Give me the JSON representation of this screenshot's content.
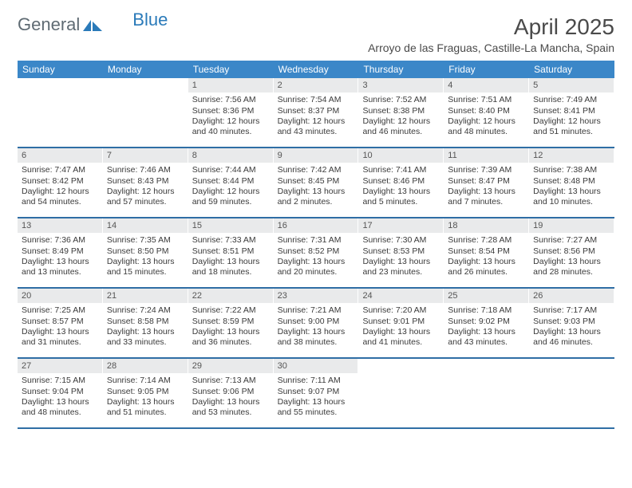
{
  "logo": {
    "textGray": "General",
    "textBlue": "Blue"
  },
  "title": "April 2025",
  "location": "Arroyo de las Fraguas, Castille-La Mancha, Spain",
  "colors": {
    "headerBar": "#3b87c8",
    "weekDivider": "#2f6ea5",
    "dayNumBg": "#e9eaeb",
    "logoGray": "#5f6b73",
    "logoBlue": "#2a7ab9"
  },
  "dayHeaders": [
    "Sunday",
    "Monday",
    "Tuesday",
    "Wednesday",
    "Thursday",
    "Friday",
    "Saturday"
  ],
  "weeks": [
    [
      null,
      null,
      {
        "n": "1",
        "sr": "7:56 AM",
        "ss": "8:36 PM",
        "dl": "12 hours and 40 minutes."
      },
      {
        "n": "2",
        "sr": "7:54 AM",
        "ss": "8:37 PM",
        "dl": "12 hours and 43 minutes."
      },
      {
        "n": "3",
        "sr": "7:52 AM",
        "ss": "8:38 PM",
        "dl": "12 hours and 46 minutes."
      },
      {
        "n": "4",
        "sr": "7:51 AM",
        "ss": "8:40 PM",
        "dl": "12 hours and 48 minutes."
      },
      {
        "n": "5",
        "sr": "7:49 AM",
        "ss": "8:41 PM",
        "dl": "12 hours and 51 minutes."
      }
    ],
    [
      {
        "n": "6",
        "sr": "7:47 AM",
        "ss": "8:42 PM",
        "dl": "12 hours and 54 minutes."
      },
      {
        "n": "7",
        "sr": "7:46 AM",
        "ss": "8:43 PM",
        "dl": "12 hours and 57 minutes."
      },
      {
        "n": "8",
        "sr": "7:44 AM",
        "ss": "8:44 PM",
        "dl": "12 hours and 59 minutes."
      },
      {
        "n": "9",
        "sr": "7:42 AM",
        "ss": "8:45 PM",
        "dl": "13 hours and 2 minutes."
      },
      {
        "n": "10",
        "sr": "7:41 AM",
        "ss": "8:46 PM",
        "dl": "13 hours and 5 minutes."
      },
      {
        "n": "11",
        "sr": "7:39 AM",
        "ss": "8:47 PM",
        "dl": "13 hours and 7 minutes."
      },
      {
        "n": "12",
        "sr": "7:38 AM",
        "ss": "8:48 PM",
        "dl": "13 hours and 10 minutes."
      }
    ],
    [
      {
        "n": "13",
        "sr": "7:36 AM",
        "ss": "8:49 PM",
        "dl": "13 hours and 13 minutes."
      },
      {
        "n": "14",
        "sr": "7:35 AM",
        "ss": "8:50 PM",
        "dl": "13 hours and 15 minutes."
      },
      {
        "n": "15",
        "sr": "7:33 AM",
        "ss": "8:51 PM",
        "dl": "13 hours and 18 minutes."
      },
      {
        "n": "16",
        "sr": "7:31 AM",
        "ss": "8:52 PM",
        "dl": "13 hours and 20 minutes."
      },
      {
        "n": "17",
        "sr": "7:30 AM",
        "ss": "8:53 PM",
        "dl": "13 hours and 23 minutes."
      },
      {
        "n": "18",
        "sr": "7:28 AM",
        "ss": "8:54 PM",
        "dl": "13 hours and 26 minutes."
      },
      {
        "n": "19",
        "sr": "7:27 AM",
        "ss": "8:56 PM",
        "dl": "13 hours and 28 minutes."
      }
    ],
    [
      {
        "n": "20",
        "sr": "7:25 AM",
        "ss": "8:57 PM",
        "dl": "13 hours and 31 minutes."
      },
      {
        "n": "21",
        "sr": "7:24 AM",
        "ss": "8:58 PM",
        "dl": "13 hours and 33 minutes."
      },
      {
        "n": "22",
        "sr": "7:22 AM",
        "ss": "8:59 PM",
        "dl": "13 hours and 36 minutes."
      },
      {
        "n": "23",
        "sr": "7:21 AM",
        "ss": "9:00 PM",
        "dl": "13 hours and 38 minutes."
      },
      {
        "n": "24",
        "sr": "7:20 AM",
        "ss": "9:01 PM",
        "dl": "13 hours and 41 minutes."
      },
      {
        "n": "25",
        "sr": "7:18 AM",
        "ss": "9:02 PM",
        "dl": "13 hours and 43 minutes."
      },
      {
        "n": "26",
        "sr": "7:17 AM",
        "ss": "9:03 PM",
        "dl": "13 hours and 46 minutes."
      }
    ],
    [
      {
        "n": "27",
        "sr": "7:15 AM",
        "ss": "9:04 PM",
        "dl": "13 hours and 48 minutes."
      },
      {
        "n": "28",
        "sr": "7:14 AM",
        "ss": "9:05 PM",
        "dl": "13 hours and 51 minutes."
      },
      {
        "n": "29",
        "sr": "7:13 AM",
        "ss": "9:06 PM",
        "dl": "13 hours and 53 minutes."
      },
      {
        "n": "30",
        "sr": "7:11 AM",
        "ss": "9:07 PM",
        "dl": "13 hours and 55 minutes."
      },
      null,
      null,
      null
    ]
  ],
  "labels": {
    "sunrise": "Sunrise:",
    "sunset": "Sunset:",
    "daylight": "Daylight:"
  }
}
